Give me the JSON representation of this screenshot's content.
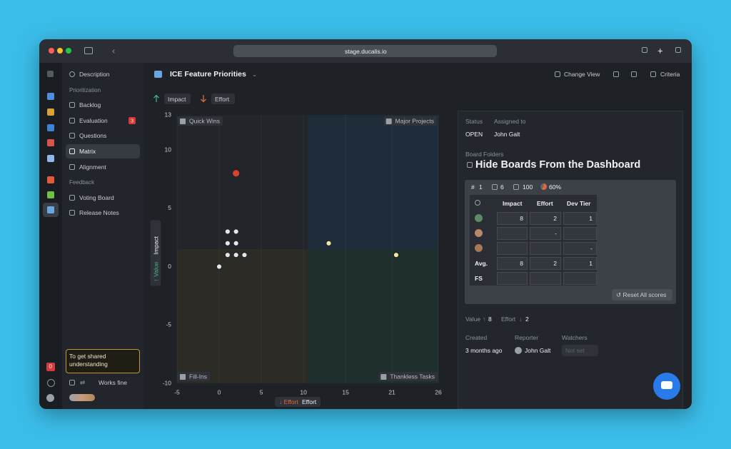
{
  "browser": {
    "url": "stage.ducalis.io"
  },
  "rail": {
    "badge": "0"
  },
  "sidebar": {
    "description": "Description",
    "sections": [
      {
        "title": "Prioritization",
        "items": [
          "Backlog",
          "Evaluation",
          "Questions",
          "Matrix",
          "Alignment"
        ]
      },
      {
        "title": "Feedback",
        "items": [
          "Voting Board",
          "Release Notes"
        ]
      }
    ],
    "evaluation_badge": "3",
    "tooltip": "To get shared understanding",
    "status": "Works fine"
  },
  "header": {
    "title": "ICE Feature Priorities",
    "change_view": "Change View",
    "criteria": "Criteria",
    "filters": [
      "Impact",
      "Effort"
    ]
  },
  "chart_data": {
    "type": "scatter",
    "x": [
      2,
      1,
      2,
      1,
      2,
      1,
      2,
      3,
      0,
      13,
      21
    ],
    "values": [
      8,
      3,
      3,
      2,
      2,
      1,
      1,
      1,
      0,
      2,
      1
    ],
    "point_colors": [
      "#d9432b",
      "#e4e6ea",
      "#e4e6ea",
      "#e4e6ea",
      "#e4e6ea",
      "#e4e6ea",
      "#e4e6ea",
      "#e4e6ea",
      "#e4e6ea",
      "#f1e7a6",
      "#f1e7a6"
    ],
    "xlim": [
      -5,
      26
    ],
    "ylim": [
      -10,
      13
    ],
    "xticks": [
      -5,
      0,
      5,
      10,
      15,
      {
        "value": 20.5,
        "label": "21"
      },
      26
    ],
    "yticks": [
      13,
      10,
      5,
      0,
      -5,
      -10
    ],
    "grid": true,
    "xlabel": "Effort",
    "ylabel": "Impact",
    "xlabel_tag": "Effort",
    "ylabel_tag": "Value",
    "quadrants": {
      "top_left": "Quick Wins",
      "top_right": "Major Projects",
      "bottom_left": "Fill-Ins",
      "bottom_right": "Thankless Tasks"
    }
  },
  "detail": {
    "status_label": "Status",
    "assigned_label": "Assigned to",
    "status": "OPEN",
    "assignee": "John Galt",
    "folders_label": "Board Folders",
    "title": "Hide Boards From the Dashboard",
    "stats": {
      "id_prefix": "#",
      "id": "1",
      "ideas": "6",
      "score": "100",
      "progress": "60%"
    },
    "table": {
      "columns": [
        "Impact",
        "Effort",
        "Dev Tier"
      ],
      "rows": [
        [
          "8",
          "2",
          "1"
        ],
        [
          null,
          "-",
          null
        ],
        [
          null,
          null,
          "-"
        ]
      ],
      "avg_label": "Avg.",
      "avg": [
        "8",
        "2",
        "1"
      ],
      "fs_label": "FS"
    },
    "reset": "Reset All scores",
    "summary": {
      "value_label": "Value",
      "value": "8",
      "effort_label": "Effort",
      "effort": "2"
    },
    "created_label": "Created",
    "reporter_label": "Reporter",
    "watchers_label": "Watchers",
    "created": "3 months ago",
    "reporter": "John Galt",
    "watchers": "Not set"
  }
}
